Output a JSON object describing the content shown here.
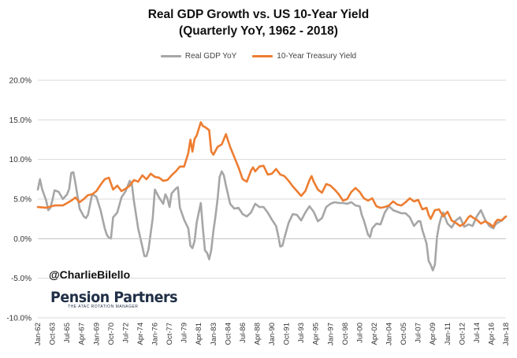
{
  "title_line1": "Real GDP Growth vs. US 10-Year Yield",
  "title_line2": "(Quarterly YoY, 1962 - 2018)",
  "handle": "@CharlieBilello",
  "logo": {
    "name": "Pension Partners",
    "tagline": "THE ATAC ROTATION MANAGER"
  },
  "colors": {
    "gdp": "#a6a6a6",
    "yield": "#ed7d31",
    "grid": "#d9d9d9",
    "axis_text": "#333333"
  },
  "chart_data": {
    "type": "line",
    "title": "Real GDP Growth vs. US 10-Year Yield (Quarterly YoY, 1962 - 2018)",
    "xlabel": "",
    "ylabel": "",
    "ylim": [
      -10,
      20
    ],
    "xlim": [
      1962.0,
      2018.0
    ],
    "grid": true,
    "legend_position": "top-center",
    "y_ticks": [
      "-10.0%",
      "-5.0%",
      "0.0%",
      "5.0%",
      "10.0%",
      "15.0%",
      "20.0%"
    ],
    "x_tick_labels": [
      "Jan-62",
      "Oct-63",
      "Jul-65",
      "Apr-67",
      "Jan-69",
      "Oct-70",
      "Jul-72",
      "Apr-74",
      "Jan-76",
      "Oct-77",
      "Jul-79",
      "Apr-81",
      "Jan-83",
      "Oct-84",
      "Jul-86",
      "Apr-88",
      "Jan-90",
      "Oct-91",
      "Jul-93",
      "Apr-95",
      "Jan-97",
      "Oct-98",
      "Jul-00",
      "Apr-02",
      "Jan-04",
      "Oct-05",
      "Jul-07",
      "Apr-09",
      "Jan-11",
      "Oct-12",
      "Jul-14",
      "Apr-16",
      "Jan-18"
    ],
    "series": [
      {
        "name": "Real GDP YoY",
        "color": "#a6a6a6",
        "points": [
          [
            1962.0,
            6.2
          ],
          [
            1962.25,
            7.5
          ],
          [
            1962.5,
            6.3
          ],
          [
            1963.0,
            4.8
          ],
          [
            1963.25,
            3.6
          ],
          [
            1963.5,
            3.9
          ],
          [
            1963.75,
            4.9
          ],
          [
            1964.0,
            6.1
          ],
          [
            1964.5,
            5.9
          ],
          [
            1965.0,
            5.0
          ],
          [
            1965.5,
            5.6
          ],
          [
            1965.75,
            6.3
          ],
          [
            1966.0,
            8.3
          ],
          [
            1966.25,
            8.4
          ],
          [
            1966.5,
            7.0
          ],
          [
            1967.0,
            3.8
          ],
          [
            1967.5,
            2.8
          ],
          [
            1967.75,
            2.6
          ],
          [
            1968.0,
            3.0
          ],
          [
            1968.5,
            5.6
          ],
          [
            1969.0,
            5.3
          ],
          [
            1969.5,
            3.6
          ],
          [
            1970.0,
            1.3
          ],
          [
            1970.25,
            0.5
          ],
          [
            1970.5,
            0.1
          ],
          [
            1970.75,
            0.0
          ],
          [
            1971.0,
            2.7
          ],
          [
            1971.5,
            3.3
          ],
          [
            1972.0,
            5.2
          ],
          [
            1972.5,
            6.0
          ],
          [
            1973.0,
            7.3
          ],
          [
            1973.25,
            6.9
          ],
          [
            1973.5,
            4.7
          ],
          [
            1974.0,
            1.3
          ],
          [
            1974.5,
            -1.0
          ],
          [
            1974.75,
            -2.2
          ],
          [
            1975.0,
            -2.2
          ],
          [
            1975.25,
            -1.3
          ],
          [
            1975.75,
            2.6
          ],
          [
            1976.0,
            6.2
          ],
          [
            1976.5,
            5.2
          ],
          [
            1977.0,
            4.4
          ],
          [
            1977.25,
            5.6
          ],
          [
            1977.5,
            5.1
          ],
          [
            1977.75,
            4.0
          ],
          [
            1978.0,
            5.7
          ],
          [
            1978.5,
            6.3
          ],
          [
            1978.75,
            6.5
          ],
          [
            1979.0,
            3.9
          ],
          [
            1979.5,
            2.4
          ],
          [
            1980.0,
            1.3
          ],
          [
            1980.25,
            -0.9
          ],
          [
            1980.5,
            -1.2
          ],
          [
            1980.75,
            -0.3
          ],
          [
            1981.0,
            2.0
          ],
          [
            1981.25,
            3.3
          ],
          [
            1981.5,
            4.5
          ],
          [
            1981.75,
            1.2
          ],
          [
            1982.0,
            -1.5
          ],
          [
            1982.25,
            -1.8
          ],
          [
            1982.5,
            -2.6
          ],
          [
            1982.75,
            -1.4
          ],
          [
            1983.0,
            1.0
          ],
          [
            1983.25,
            2.8
          ],
          [
            1983.5,
            5.0
          ],
          [
            1983.75,
            7.8
          ],
          [
            1984.0,
            8.5
          ],
          [
            1984.25,
            8.0
          ],
          [
            1984.5,
            6.7
          ],
          [
            1984.75,
            5.6
          ],
          [
            1985.0,
            4.4
          ],
          [
            1985.5,
            3.8
          ],
          [
            1986.0,
            3.9
          ],
          [
            1986.5,
            3.1
          ],
          [
            1987.0,
            2.8
          ],
          [
            1987.5,
            3.3
          ],
          [
            1988.0,
            4.4
          ],
          [
            1988.5,
            4.0
          ],
          [
            1989.0,
            4.0
          ],
          [
            1989.5,
            3.3
          ],
          [
            1990.0,
            2.4
          ],
          [
            1990.5,
            1.6
          ],
          [
            1990.75,
            0.4
          ],
          [
            1991.0,
            -1.0
          ],
          [
            1991.25,
            -0.9
          ],
          [
            1991.5,
            0.1
          ],
          [
            1992.0,
            2.0
          ],
          [
            1992.5,
            3.1
          ],
          [
            1993.0,
            3.0
          ],
          [
            1993.5,
            2.3
          ],
          [
            1994.0,
            3.3
          ],
          [
            1994.5,
            4.1
          ],
          [
            1995.0,
            3.4
          ],
          [
            1995.5,
            2.2
          ],
          [
            1996.0,
            2.6
          ],
          [
            1996.5,
            4.0
          ],
          [
            1997.0,
            4.4
          ],
          [
            1997.5,
            4.6
          ],
          [
            1998.0,
            4.5
          ],
          [
            1998.5,
            4.5
          ],
          [
            1999.0,
            4.4
          ],
          [
            1999.5,
            4.6
          ],
          [
            2000.0,
            4.2
          ],
          [
            2000.5,
            4.1
          ],
          [
            2000.75,
            3.0
          ],
          [
            2001.0,
            2.3
          ],
          [
            2001.5,
            0.5
          ],
          [
            2001.75,
            0.2
          ],
          [
            2002.0,
            1.3
          ],
          [
            2002.5,
            1.9
          ],
          [
            2003.0,
            1.8
          ],
          [
            2003.5,
            3.3
          ],
          [
            2004.0,
            4.1
          ],
          [
            2004.5,
            3.6
          ],
          [
            2005.0,
            3.4
          ],
          [
            2005.5,
            3.2
          ],
          [
            2006.0,
            3.2
          ],
          [
            2006.5,
            2.7
          ],
          [
            2007.0,
            1.6
          ],
          [
            2007.5,
            2.2
          ],
          [
            2007.75,
            2.2
          ],
          [
            2008.0,
            1.1
          ],
          [
            2008.5,
            -0.6
          ],
          [
            2008.75,
            -2.8
          ],
          [
            2009.0,
            -3.3
          ],
          [
            2009.25,
            -4.0
          ],
          [
            2009.5,
            -3.3
          ],
          [
            2009.75,
            0.2
          ],
          [
            2010.0,
            1.7
          ],
          [
            2010.25,
            2.7
          ],
          [
            2010.5,
            3.3
          ],
          [
            2010.75,
            2.6
          ],
          [
            2011.0,
            1.9
          ],
          [
            2011.5,
            1.4
          ],
          [
            2012.0,
            2.3
          ],
          [
            2012.5,
            2.7
          ],
          [
            2013.0,
            1.5
          ],
          [
            2013.5,
            1.8
          ],
          [
            2014.0,
            1.6
          ],
          [
            2014.5,
            2.8
          ],
          [
            2015.0,
            3.6
          ],
          [
            2015.25,
            3.0
          ],
          [
            2015.5,
            2.4
          ],
          [
            2016.0,
            1.6
          ],
          [
            2016.5,
            1.3
          ],
          [
            2016.75,
            1.8
          ],
          [
            2017.0,
            2.0
          ],
          [
            2017.5,
            2.3
          ],
          [
            2017.75,
            2.6
          ],
          [
            2018.0,
            2.8
          ]
        ]
      },
      {
        "name": "10-Year Treasury Yield",
        "color": "#ed7d31",
        "points": [
          [
            1962.0,
            4.0
          ],
          [
            1963.0,
            3.9
          ],
          [
            1964.0,
            4.2
          ],
          [
            1965.0,
            4.2
          ],
          [
            1966.0,
            4.8
          ],
          [
            1966.5,
            5.2
          ],
          [
            1967.0,
            4.6
          ],
          [
            1967.5,
            5.0
          ],
          [
            1968.0,
            5.5
          ],
          [
            1968.5,
            5.6
          ],
          [
            1969.0,
            6.0
          ],
          [
            1969.5,
            6.8
          ],
          [
            1970.0,
            7.5
          ],
          [
            1970.5,
            7.7
          ],
          [
            1971.0,
            6.2
          ],
          [
            1971.5,
            6.7
          ],
          [
            1972.0,
            6.0
          ],
          [
            1972.5,
            6.3
          ],
          [
            1973.0,
            6.7
          ],
          [
            1973.5,
            7.4
          ],
          [
            1974.0,
            7.2
          ],
          [
            1974.5,
            8.0
          ],
          [
            1975.0,
            7.5
          ],
          [
            1975.5,
            8.2
          ],
          [
            1976.0,
            7.8
          ],
          [
            1976.5,
            7.7
          ],
          [
            1977.0,
            7.3
          ],
          [
            1977.5,
            7.4
          ],
          [
            1978.0,
            8.0
          ],
          [
            1978.5,
            8.5
          ],
          [
            1979.0,
            9.1
          ],
          [
            1979.5,
            9.1
          ],
          [
            1980.0,
            10.8
          ],
          [
            1980.25,
            12.5
          ],
          [
            1980.5,
            11.0
          ],
          [
            1980.75,
            12.6
          ],
          [
            1981.0,
            13.0
          ],
          [
            1981.5,
            14.7
          ],
          [
            1981.75,
            14.2
          ],
          [
            1982.0,
            14.1
          ],
          [
            1982.5,
            13.7
          ],
          [
            1982.75,
            11.0
          ],
          [
            1983.0,
            10.6
          ],
          [
            1983.5,
            11.6
          ],
          [
            1984.0,
            11.9
          ],
          [
            1984.5,
            13.2
          ],
          [
            1984.75,
            12.4
          ],
          [
            1985.0,
            11.6
          ],
          [
            1985.5,
            10.3
          ],
          [
            1986.0,
            9.0
          ],
          [
            1986.5,
            7.5
          ],
          [
            1987.0,
            7.2
          ],
          [
            1987.5,
            8.6
          ],
          [
            1987.75,
            9.0
          ],
          [
            1988.0,
            8.5
          ],
          [
            1988.5,
            9.1
          ],
          [
            1989.0,
            9.2
          ],
          [
            1989.5,
            8.1
          ],
          [
            1990.0,
            8.2
          ],
          [
            1990.5,
            8.8
          ],
          [
            1991.0,
            8.1
          ],
          [
            1991.5,
            7.9
          ],
          [
            1992.0,
            7.3
          ],
          [
            1992.5,
            6.6
          ],
          [
            1993.0,
            6.0
          ],
          [
            1993.5,
            5.4
          ],
          [
            1994.0,
            6.0
          ],
          [
            1994.5,
            7.4
          ],
          [
            1994.75,
            7.9
          ],
          [
            1995.0,
            7.2
          ],
          [
            1995.5,
            6.2
          ],
          [
            1996.0,
            5.8
          ],
          [
            1996.5,
            6.9
          ],
          [
            1997.0,
            6.7
          ],
          [
            1997.5,
            6.2
          ],
          [
            1998.0,
            5.6
          ],
          [
            1998.5,
            4.8
          ],
          [
            1999.0,
            5.0
          ],
          [
            1999.5,
            5.9
          ],
          [
            2000.0,
            6.4
          ],
          [
            2000.5,
            5.9
          ],
          [
            2001.0,
            5.1
          ],
          [
            2001.5,
            4.8
          ],
          [
            2002.0,
            5.1
          ],
          [
            2002.5,
            4.1
          ],
          [
            2003.0,
            3.9
          ],
          [
            2003.5,
            4.0
          ],
          [
            2004.0,
            4.2
          ],
          [
            2004.5,
            4.7
          ],
          [
            2005.0,
            4.3
          ],
          [
            2005.5,
            4.2
          ],
          [
            2006.0,
            4.6
          ],
          [
            2006.5,
            5.1
          ],
          [
            2007.0,
            4.7
          ],
          [
            2007.5,
            4.9
          ],
          [
            2008.0,
            3.7
          ],
          [
            2008.5,
            3.9
          ],
          [
            2008.75,
            3.0
          ],
          [
            2009.0,
            2.5
          ],
          [
            2009.5,
            3.6
          ],
          [
            2010.0,
            3.7
          ],
          [
            2010.5,
            2.8
          ],
          [
            2011.0,
            3.4
          ],
          [
            2011.5,
            2.3
          ],
          [
            2012.0,
            2.0
          ],
          [
            2012.5,
            1.6
          ],
          [
            2013.0,
            1.9
          ],
          [
            2013.5,
            2.7
          ],
          [
            2013.75,
            2.9
          ],
          [
            2014.0,
            2.7
          ],
          [
            2014.5,
            2.4
          ],
          [
            2015.0,
            1.9
          ],
          [
            2015.5,
            2.2
          ],
          [
            2016.0,
            1.9
          ],
          [
            2016.5,
            1.5
          ],
          [
            2016.75,
            2.1
          ],
          [
            2017.0,
            2.4
          ],
          [
            2017.5,
            2.3
          ],
          [
            2018.0,
            2.8
          ]
        ]
      }
    ]
  }
}
